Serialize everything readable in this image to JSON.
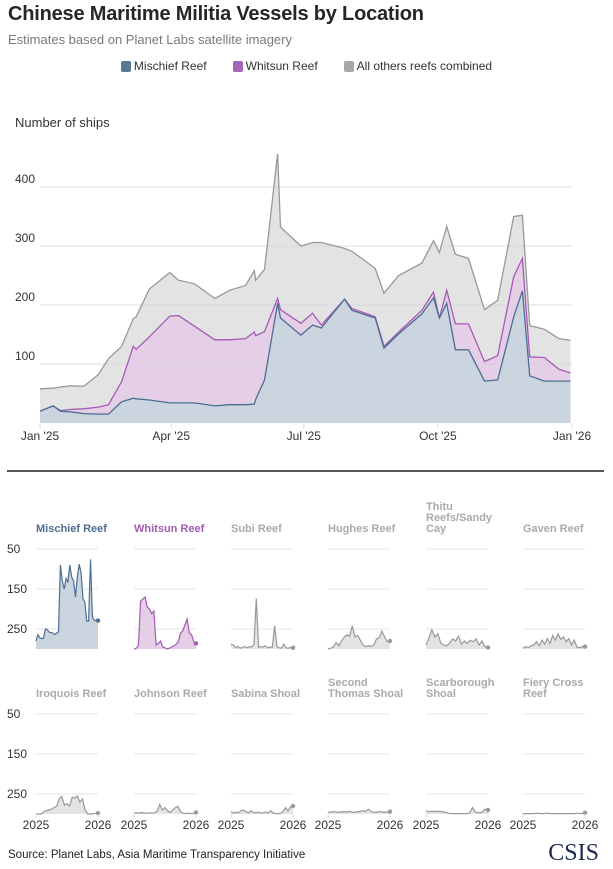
{
  "title": "Chinese Maritime Militia Vessels by Location",
  "subtitle": "Estimates based on Planet Labs satellite imagery",
  "legend": [
    {
      "label": "Mischief Reef",
      "color": "#5a7797"
    },
    {
      "label": "Whitsun Reef",
      "color": "#a566b8"
    },
    {
      "label": "All others reefs combined",
      "color": "#a8a8a8"
    }
  ],
  "source": "Source: Planet Labs, Asia Maritime Transparency Initiative",
  "logo": "CSIS",
  "colors": {
    "mischief_line": "#4d6e91",
    "mischief_fill": "#cbd5e0",
    "whitsun_line": "#a45bb5",
    "whitsun_fill": "#e5cfe6",
    "others_line": "#999999",
    "others_fill": "#e3e3e3",
    "grid": "#e6e6e6",
    "muted_title": "#aaaaaa"
  },
  "chart_data": [
    {
      "type": "area",
      "stacked": true,
      "title": "Chinese Maritime Militia Vessels by Location",
      "ylabel": "Number of ships",
      "xlabel": "",
      "ylim": [
        0,
        460
      ],
      "yticks": [
        100,
        200,
        300,
        400
      ],
      "xlim_days": [
        0,
        365
      ],
      "xticks": [
        {
          "day": 0,
          "label": "Jan '25"
        },
        {
          "day": 90,
          "label": "Apr '25"
        },
        {
          "day": 181,
          "label": "Jul '25"
        },
        {
          "day": 273,
          "label": "Oct '25"
        },
        {
          "day": 365,
          "label": "Jan '26"
        }
      ],
      "grid": true,
      "legend_position": "top-center",
      "x_days": [
        0,
        9,
        14,
        21,
        30,
        40,
        47,
        56,
        64,
        66,
        75,
        89,
        95,
        106,
        120,
        130,
        141,
        147,
        148,
        154,
        163,
        165,
        179,
        187,
        193,
        209,
        214,
        230,
        236,
        246,
        262,
        270,
        274,
        279,
        285,
        294,
        305,
        314,
        325,
        331,
        336,
        346,
        356,
        364
      ],
      "series": [
        {
          "name": "Mischief Reef",
          "values": [
            20,
            29,
            20,
            19,
            16,
            15,
            15,
            36,
            42,
            41,
            39,
            34,
            34,
            34,
            29,
            31,
            31,
            32,
            40,
            73,
            203,
            178,
            149,
            166,
            161,
            210,
            191,
            178,
            127,
            151,
            185,
            212,
            178,
            203,
            124,
            124,
            71,
            73,
            180,
            224,
            80,
            71,
            71,
            71
          ]
        },
        {
          "name": "Whitsun Reef",
          "values": [
            0,
            0,
            1,
            4,
            8,
            12,
            16,
            34,
            88,
            84,
            107,
            147,
            148,
            130,
            112,
            110,
            112,
            122,
            108,
            82,
            8,
            14,
            20,
            20,
            5,
            0,
            3,
            2,
            3,
            3,
            6,
            10,
            0,
            22,
            44,
            44,
            33,
            41,
            68,
            55,
            32,
            40,
            20,
            14
          ]
        },
        {
          "name": "All others reefs combined",
          "values": [
            38,
            30,
            40,
            40,
            38,
            55,
            78,
            60,
            47,
            55,
            81,
            74,
            60,
            72,
            70,
            84,
            90,
            104,
            94,
            105,
            245,
            140,
            131,
            120,
            140,
            86,
            97,
            82,
            90,
            96,
            80,
            87,
            111,
            108,
            118,
            111,
            88,
            94,
            102,
            73,
            53,
            48,
            52,
            55
          ]
        }
      ]
    },
    {
      "type": "area",
      "title": "Small multiples by reef",
      "ylim": [
        0,
        260
      ],
      "yticks": [
        50,
        150,
        250
      ],
      "xticks": [
        "2025",
        "2026"
      ],
      "panels": [
        {
          "name": "Mischief Reef",
          "color": "mischief",
          "values": [
            20,
            36,
            28,
            26,
            27,
            50,
            48,
            42,
            41,
            40,
            36,
            40,
            43,
            210,
            170,
            150,
            176,
            168,
            210,
            180,
            170,
            130,
            180,
            212,
            190,
            125,
            118,
            70,
            70,
            224,
            80,
            72,
            71,
            71
          ]
        },
        {
          "name": "Whitsun Reef",
          "color": "whitsun",
          "values": [
            0,
            2,
            8,
            120,
            125,
            130,
            105,
            100,
            88,
            95,
            10,
            14,
            20,
            5,
            3,
            0,
            2,
            5,
            8,
            12,
            18,
            40,
            45,
            60,
            75,
            40,
            35,
            18,
            14
          ]
        },
        {
          "name": "Subi Reef",
          "color": "others",
          "values": [
            12,
            10,
            4,
            6,
            2,
            4,
            6,
            3,
            6,
            5,
            12,
            126,
            4,
            6,
            5,
            8,
            3,
            5,
            4,
            58,
            6,
            3,
            2,
            12,
            3,
            2,
            4,
            3
          ]
        },
        {
          "name": "Hughes Reef",
          "color": "others",
          "values": [
            0,
            2,
            5,
            16,
            8,
            20,
            30,
            35,
            32,
            58,
            30,
            34,
            22,
            10,
            6,
            8,
            7,
            10,
            25,
            28,
            45,
            30,
            18,
            20
          ]
        },
        {
          "name": "Thitu Reefs/Sandy Cay",
          "color": "others",
          "values": [
            10,
            28,
            48,
            30,
            38,
            15,
            10,
            8,
            15,
            25,
            20,
            32,
            12,
            20,
            14,
            22,
            18,
            25,
            10,
            20,
            5,
            4
          ]
        },
        {
          "name": "Gaven Reef",
          "color": "others",
          "values": [
            2,
            6,
            4,
            8,
            10,
            18,
            8,
            22,
            12,
            26,
            14,
            34,
            22,
            38,
            24,
            30,
            18,
            26,
            10,
            22,
            5,
            3,
            6,
            6
          ]
        },
        {
          "name": "Iroquois Reef",
          "color": "others",
          "values": [
            0,
            0,
            0,
            6,
            8,
            10,
            12,
            16,
            20,
            38,
            44,
            22,
            26,
            20,
            42,
            40,
            45,
            30,
            38,
            10,
            0,
            0,
            0,
            2,
            2
          ]
        },
        {
          "name": "Johnson Reef",
          "color": "others",
          "values": [
            2,
            3,
            2,
            4,
            2,
            2,
            3,
            2,
            3,
            8,
            24,
            10,
            16,
            8,
            4,
            10,
            16,
            19,
            6,
            2,
            1,
            2,
            1,
            2,
            4
          ]
        },
        {
          "name": "Sabina Shoal",
          "color": "others",
          "values": [
            6,
            2,
            4,
            3,
            8,
            10,
            6,
            3,
            8,
            4,
            3,
            5,
            2,
            3,
            5,
            2,
            8,
            3,
            1,
            1,
            2,
            6,
            16,
            8,
            18,
            20
          ]
        },
        {
          "name": "Second Thomas Shoal",
          "color": "others",
          "values": [
            4,
            5,
            6,
            4,
            5,
            6,
            5,
            7,
            4,
            5,
            6,
            8,
            6,
            12,
            6,
            4,
            5,
            6,
            4,
            5,
            6
          ]
        },
        {
          "name": "Scarborough Shoal",
          "color": "others",
          "values": [
            8,
            6,
            7,
            6,
            7,
            6,
            5,
            2,
            1,
            1,
            1,
            1,
            1,
            1,
            2,
            16,
            4,
            3,
            4,
            12,
            10
          ]
        },
        {
          "name": "Fiery Cross Reef",
          "color": "others",
          "values": [
            1,
            1,
            1,
            1,
            2,
            1,
            1,
            2,
            1,
            1,
            1,
            1,
            1,
            1,
            1,
            1,
            2,
            1,
            3
          ]
        }
      ]
    }
  ],
  "main_chart": {
    "ylabel": "Number of ships",
    "ytick_labels": [
      "100",
      "200",
      "300",
      "400"
    ],
    "xtick_labels": [
      "Jan '25",
      "Apr '25",
      "Jul '25",
      "Oct '25",
      "Jan '26"
    ]
  },
  "small_multiples": {
    "ytick_labels": [
      "250",
      "150",
      "50"
    ],
    "xtick_start": "2025",
    "xtick_end": "2026"
  }
}
